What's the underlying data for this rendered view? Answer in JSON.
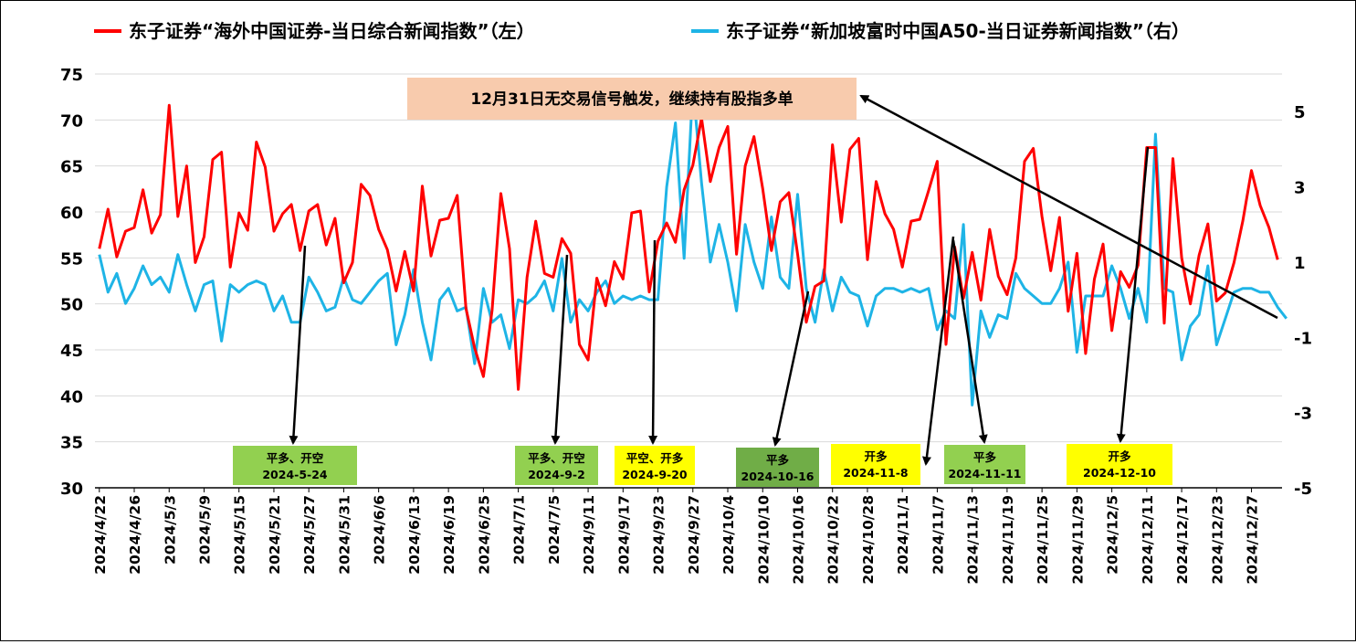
{
  "legend": {
    "left_label": "东子证券“海外中国证券-当日综合新闻指数”（左）",
    "right_label": "东子证券“新加坡富时中国A50-当日证券新闻指数”（右）"
  },
  "callout": {
    "text": "12月31日无交易信号触发，继续持有股指多单",
    "bg_color": "#f8cbad"
  },
  "signals": [
    {
      "action": "平多、开空",
      "date": "2024-5-24",
      "color": "#92d050",
      "x_index": 23
    },
    {
      "action": "平多、开空",
      "date": "2024-9-2",
      "color": "#92d050",
      "x_index": 55
    },
    {
      "action": "平空、开多",
      "date": "2024-9-20",
      "color": "#ffff00",
      "x_index": 67
    },
    {
      "action": "平多",
      "date": "2024-10-16",
      "color": "#70ad47",
      "x_index": 84
    },
    {
      "action": "开多",
      "date": "2024-11-8",
      "color": "#ffff00",
      "x_index": 99
    },
    {
      "action": "平多",
      "date": "2024-11-11",
      "color": "#92d050",
      "x_index": 101
    },
    {
      "action": "开多",
      "date": "2024-12-10",
      "color": "#ffff00",
      "x_index": 121
    }
  ],
  "chart_data": {
    "type": "line",
    "title": "",
    "x_tick_labels": [
      "2024/4/22",
      "2024/4/26",
      "2024/5/3",
      "2024/5/9",
      "2024/5/15",
      "2024/5/21",
      "2024/5/27",
      "2024/5/31",
      "2024/6/6",
      "2024/6/13",
      "2024/6/19",
      "2024/6/25",
      "2024/7/1",
      "2024/7/5",
      "2024/9/11",
      "2024/9/17",
      "2024/9/23",
      "2024/9/27",
      "2024/10/4",
      "2024/10/10",
      "2024/10/16",
      "2024/10/22",
      "2024/10/28",
      "2024/11/1",
      "2024/11/7",
      "2024/11/13",
      "2024/11/19",
      "2024/11/25",
      "2024/11/29",
      "2024/12/5",
      "2024/12/11",
      "2024/12/17",
      "2024/12/23",
      "2024/12/27"
    ],
    "x_tick_every": 4,
    "ylim_left": [
      30,
      75
    ],
    "yticks_left": [
      30,
      35,
      40,
      45,
      50,
      55,
      60,
      65,
      70,
      75
    ],
    "ylim_right": [
      -5,
      6
    ],
    "yticks_right": [
      -5,
      -3,
      -1,
      1,
      3,
      5
    ],
    "grid": "horizontal",
    "legend_position": "top",
    "series": [
      {
        "name": "东子证券“海外中国证券-当日综合新闻指数”（左）",
        "axis": "left",
        "color": "#ff0000",
        "values": [
          56.0,
          60.3,
          55.1,
          57.9,
          58.3,
          62.4,
          57.7,
          59.7,
          71.6,
          59.5,
          65.0,
          54.5,
          57.3,
          65.7,
          66.5,
          54.0,
          59.9,
          58.0,
          67.6,
          64.9,
          57.9,
          59.8,
          60.8,
          55.8,
          60.1,
          60.8,
          56.4,
          59.3,
          52.3,
          54.5,
          63.0,
          61.8,
          58.1,
          55.9,
          51.4,
          55.7,
          51.4,
          62.8,
          55.2,
          59.1,
          59.3,
          61.8,
          49.5,
          45.2,
          42.1,
          49.3,
          62.0,
          56.0,
          40.7,
          52.9,
          59.0,
          53.3,
          52.9,
          57.1,
          55.5,
          45.6,
          43.9,
          52.8,
          49.8,
          54.6,
          52.7,
          59.9,
          60.1,
          51.3,
          56.8,
          58.8,
          56.7,
          62.4,
          65.1,
          70.2,
          63.3,
          67.0,
          69.3,
          55.4,
          65.0,
          68.2,
          62.5,
          55.8,
          61.1,
          62.1,
          55.4,
          48.0,
          51.9,
          52.5,
          67.3,
          58.9,
          66.8,
          68.0,
          54.8,
          63.3,
          59.8,
          58.1,
          54.0,
          59.0,
          59.2,
          62.3,
          65.5,
          45.6,
          56.2,
          50.6,
          55.6,
          50.4,
          58.1,
          53.0,
          51.0,
          55.0,
          65.5,
          66.9,
          59.5,
          53.6,
          59.4,
          49.2,
          55.5,
          44.6,
          52.7,
          56.5,
          47.1,
          53.5,
          51.8,
          54.2,
          67.0,
          67.0,
          47.9,
          65.8,
          55.0,
          50.0,
          55.3,
          58.7,
          50.3,
          51.2,
          54.5,
          59.0,
          64.5,
          60.7,
          58.3,
          54.8
        ]
      },
      {
        "name": "东子证券“新加坡富时中国A50-当日证券新闻指数”（右）",
        "axis": "right",
        "color": "#1eb4e6",
        "values": [
          1.2,
          0.2,
          0.7,
          -0.1,
          0.3,
          0.9,
          0.4,
          0.6,
          0.2,
          1.2,
          0.4,
          -0.3,
          0.4,
          0.5,
          -1.1,
          0.4,
          0.2,
          0.4,
          0.5,
          0.4,
          -0.3,
          0.1,
          -0.6,
          -0.6,
          0.6,
          0.2,
          -0.3,
          -0.2,
          0.6,
          0.0,
          -0.1,
          0.2,
          0.5,
          0.7,
          -1.2,
          -0.4,
          0.8,
          -0.6,
          -1.6,
          0.0,
          0.3,
          -0.3,
          -0.2,
          -1.7,
          0.3,
          -0.6,
          -0.4,
          -1.3,
          0.0,
          -0.1,
          0.1,
          0.5,
          -0.3,
          1.1,
          -0.6,
          0.0,
          -0.3,
          0.2,
          0.5,
          -0.1,
          0.1,
          0.0,
          0.1,
          0.0,
          0.0,
          3.0,
          4.7,
          1.1,
          5.7,
          3.1,
          1.0,
          2.0,
          1.0,
          -0.3,
          2.0,
          1.0,
          0.3,
          2.2,
          0.6,
          0.3,
          2.8,
          0.3,
          -0.6,
          0.8,
          -0.3,
          0.6,
          0.2,
          0.1,
          -0.7,
          0.1,
          0.3,
          0.3,
          0.2,
          0.3,
          0.2,
          0.3,
          -0.8,
          -0.3,
          -0.5,
          2.0,
          -2.8,
          -0.3,
          -1.0,
          -0.4,
          -0.5,
          0.7,
          0.3,
          0.1,
          -0.1,
          -0.1,
          0.3,
          1.0,
          -1.4,
          0.1,
          0.1,
          0.1,
          0.9,
          0.3,
          -0.5,
          0.3,
          -0.6,
          4.4,
          0.3,
          0.2,
          -1.6,
          -0.7,
          -0.4,
          0.9,
          -1.2,
          -0.5,
          0.2,
          0.3,
          0.3,
          0.2,
          0.2,
          -0.2,
          -0.5
        ]
      }
    ]
  }
}
